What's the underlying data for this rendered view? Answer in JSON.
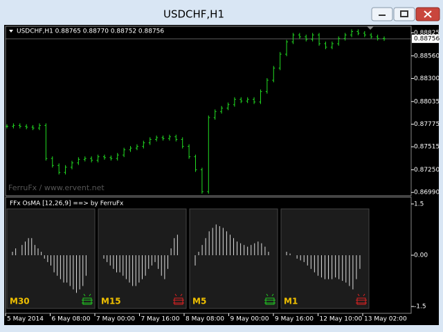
{
  "window": {
    "title": "USDCHF,H1"
  },
  "price_chart": {
    "header": "USDCHF,H1  0.88765 0.88770 0.88752 0.88756",
    "watermark": "FerruFx / www.ervent.net",
    "current_price": 0.88756,
    "color": "#22dd22",
    "ylim": [
      0.8696,
      0.889
    ],
    "yticks": [
      0.88825,
      {
        "value": 0.8856,
        "label": "0.88560"
      },
      {
        "value": 0.883,
        "label": "0.88300"
      },
      0.88035,
      0.87775,
      0.87515,
      {
        "value": 0.8725,
        "label": "0.87250"
      },
      {
        "value": 0.8699,
        "label": "0.86990"
      }
    ],
    "values": [
      0.8775,
      0.8776,
      0.8775,
      0.8774,
      0.8773,
      0.8776,
      0.8738,
      0.873,
      0.8722,
      0.8728,
      0.8733,
      0.8737,
      0.8738,
      0.8736,
      0.874,
      0.8739,
      0.8738,
      0.8742,
      0.8748,
      0.875,
      0.8752,
      0.8756,
      0.876,
      0.8762,
      0.8761,
      0.8763,
      0.876,
      0.8752,
      0.874,
      0.8725,
      0.87,
      0.8785,
      0.8792,
      0.8796,
      0.88,
      0.8806,
      0.8804,
      0.8806,
      0.8803,
      0.8815,
      0.8828,
      0.8842,
      0.8858,
      0.8872,
      0.888,
      0.8878,
      0.8875,
      0.888,
      0.887,
      0.8866,
      0.887,
      0.8876,
      0.888,
      0.8884,
      0.8882,
      0.888,
      0.8878,
      0.8876,
      0.88756
    ]
  },
  "indicator": {
    "title": "FFx OsMA [12,26,9] ==> by FerruFx",
    "ylim": [
      -1.7,
      1.7
    ],
    "yticks": [
      1.5,
      {
        "value": 0,
        "label": "0.00"
      },
      -1.5
    ],
    "panels": [
      {
        "label": "M30",
        "signal_color": "#22cc22",
        "values": [
          0.1,
          0.2,
          0,
          0.3,
          0.4,
          0.5,
          0.5,
          0.3,
          0.2,
          0.1,
          -0.1,
          -0.2,
          -0.3,
          -0.5,
          -0.6,
          -0.7,
          -0.8,
          -0.8,
          -0.9,
          -1.0,
          -1.1,
          -1.0,
          -0.9,
          -0.6
        ]
      },
      {
        "label": "M15",
        "signal_color": "#dd2222",
        "values": [
          -0.1,
          -0.2,
          -0.3,
          -0.4,
          -0.5,
          -0.5,
          -0.6,
          -0.7,
          -0.8,
          -0.9,
          -0.9,
          -0.8,
          -0.7,
          -0.6,
          -0.4,
          -0.3,
          -0.2,
          -0.4,
          -0.6,
          -0.7,
          -0.4,
          0.2,
          0.5,
          0.6
        ]
      },
      {
        "label": "M5",
        "signal_color": "#22cc22",
        "values": [
          -0.3,
          0.1,
          0.3,
          0.5,
          0.7,
          0.8,
          0.9,
          0.85,
          0.8,
          0.7,
          0.6,
          0.5,
          0.4,
          0.35,
          0.3,
          0.25,
          0.3,
          0.35,
          0.4,
          0.35,
          0.25,
          0.1
        ]
      },
      {
        "label": "M1",
        "signal_color": "#dd2222",
        "values": [
          0.1,
          0.05,
          0,
          -0.1,
          -0.15,
          -0.2,
          -0.3,
          -0.4,
          -0.5,
          -0.6,
          -0.65,
          -0.7,
          -0.7,
          -0.7,
          -0.65,
          -0.7,
          -0.75,
          -0.8,
          -0.9,
          -1.0,
          -0.7,
          -0.4
        ]
      }
    ]
  },
  "x_axis": {
    "labels": [
      "5 May 2014",
      "6 May 08:00",
      "7 May 00:00",
      "7 May 16:00",
      "8 May 08:00",
      "9 May 00:00",
      "9 May 16:00",
      "12 May 10:00",
      "13 May 02:00"
    ]
  }
}
